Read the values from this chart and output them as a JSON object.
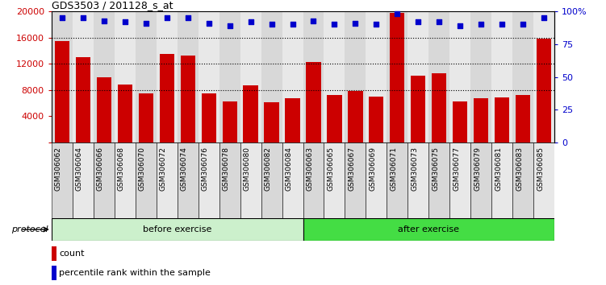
{
  "title": "GDS3503 / 201128_s_at",
  "samples": [
    "GSM306062",
    "GSM306064",
    "GSM306066",
    "GSM306068",
    "GSM306070",
    "GSM306072",
    "GSM306074",
    "GSM306076",
    "GSM306078",
    "GSM306080",
    "GSM306082",
    "GSM306084",
    "GSM306063",
    "GSM306065",
    "GSM306067",
    "GSM306069",
    "GSM306071",
    "GSM306073",
    "GSM306075",
    "GSM306077",
    "GSM306079",
    "GSM306081",
    "GSM306083",
    "GSM306085"
  ],
  "counts": [
    15500,
    13000,
    10000,
    8800,
    7500,
    13500,
    13300,
    7500,
    6300,
    8700,
    6200,
    6800,
    12300,
    7200,
    7900,
    7000,
    19800,
    10200,
    10600,
    6300,
    6700,
    6900,
    7200,
    15800
  ],
  "percentiles": [
    95,
    95,
    93,
    92,
    91,
    95,
    95,
    91,
    89,
    92,
    90,
    90,
    93,
    90,
    91,
    90,
    98,
    92,
    92,
    89,
    90,
    90,
    90,
    95
  ],
  "bar_color": "#cc0000",
  "dot_color": "#0000cc",
  "before_exercise_count": 12,
  "after_exercise_count": 12,
  "before_label": "before exercise",
  "after_label": "after exercise",
  "before_color": "#ccf0cc",
  "after_color": "#44dd44",
  "protocol_label": "protocol",
  "ylim_left": [
    0,
    20000
  ],
  "ylim_right": [
    0,
    100
  ],
  "yticks_left": [
    0,
    4000,
    8000,
    12000,
    16000,
    20000
  ],
  "yticks_right": [
    0,
    25,
    50,
    75,
    100
  ],
  "ytick_labels_left": [
    "",
    "4000",
    "8000",
    "12000",
    "16000",
    "20000"
  ],
  "ytick_labels_right": [
    "0",
    "25",
    "50",
    "75",
    "100%"
  ],
  "grid_values": [
    8000,
    12000,
    16000
  ],
  "col_bg_color": "#d8d8d8",
  "col_bg_alt_color": "#e8e8e8"
}
